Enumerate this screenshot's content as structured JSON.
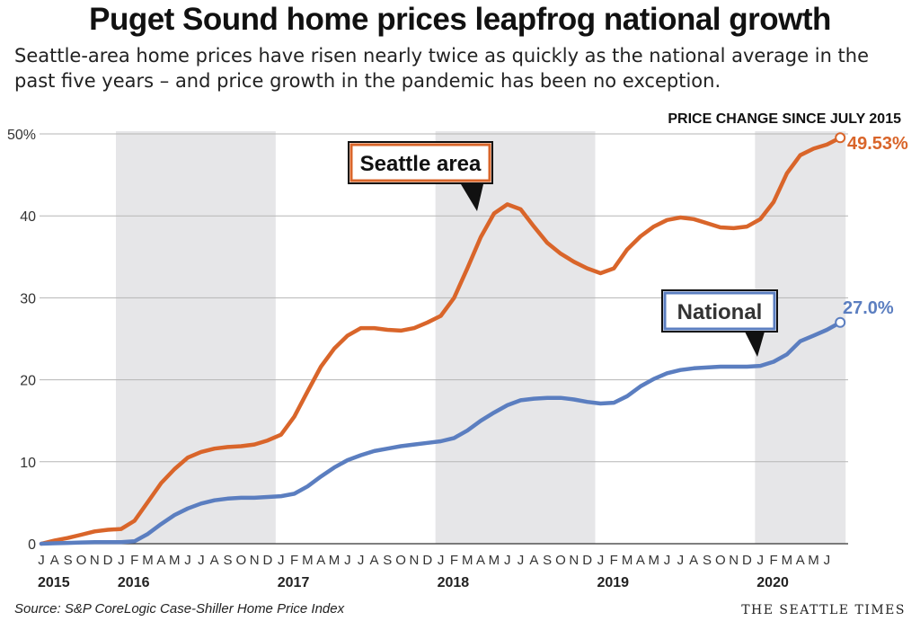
{
  "title": "Puget Sound home prices leapfrog national growth",
  "subtitle": "Seattle-area home prices have risen nearly twice as quickly as the national average in the past five years – and price growth in the pandemic has been no exception.",
  "source": "Source: S&P CoreLogic Case-Shiller Home Price Index",
  "brand": "THE SEATTLE TIMES",
  "chart_data": {
    "type": "line",
    "annotation": "PRICE CHANGE SINCE JULY 2015",
    "ylim": [
      0,
      50
    ],
    "yticks": [
      "0",
      "10",
      "20",
      "30",
      "40",
      "50%"
    ],
    "grid": true,
    "month_labels": [
      "J",
      "A",
      "S",
      "O",
      "N",
      "D",
      "J",
      "F",
      "M",
      "A",
      "M",
      "J",
      "J",
      "A",
      "S",
      "O",
      "N",
      "D",
      "J",
      "F",
      "M",
      "A",
      "M",
      "J",
      "J",
      "A",
      "S",
      "O",
      "N",
      "D",
      "J",
      "F",
      "M",
      "A",
      "M",
      "J",
      "J",
      "A",
      "S",
      "O",
      "N",
      "D",
      "J",
      "F",
      "M",
      "A",
      "M",
      "J",
      "J",
      "A",
      "S",
      "O",
      "N",
      "D",
      "J",
      "F",
      "M",
      "A",
      "M",
      "J"
    ],
    "year_labels": [
      "2015",
      "2016",
      "2017",
      "2018",
      "2019",
      "2020"
    ],
    "colors": {
      "seattle": "#d9652a",
      "national": "#5b7ec0",
      "shade": "#e6e6e8",
      "grid": "#b5b5b5"
    },
    "series": [
      {
        "name": "Seattle area",
        "end_label": "49.53%",
        "values": [
          0,
          0.4,
          0.7,
          1.1,
          1.5,
          1.7,
          1.8,
          2.8,
          5.1,
          7.4,
          9.1,
          10.5,
          11.2,
          11.6,
          11.8,
          11.9,
          12.1,
          12.6,
          13.3,
          15.5,
          18.6,
          21.6,
          23.8,
          25.4,
          26.3,
          26.3,
          26.1,
          26.0,
          26.3,
          27.0,
          27.8,
          30.0,
          33.6,
          37.4,
          40.3,
          41.4,
          40.8,
          38.7,
          36.7,
          35.4,
          34.4,
          33.6,
          33.0,
          33.6,
          35.9,
          37.5,
          38.7,
          39.5,
          39.8,
          39.6,
          39.1,
          38.6,
          38.5,
          38.7,
          39.6,
          41.7,
          45.2,
          47.4,
          48.2,
          48.7,
          49.53
        ]
      },
      {
        "name": "National",
        "end_label": "27.0%",
        "values": [
          0,
          0.05,
          0.1,
          0.15,
          0.2,
          0.2,
          0.2,
          0.3,
          1.2,
          2.4,
          3.5,
          4.3,
          4.9,
          5.3,
          5.5,
          5.6,
          5.6,
          5.7,
          5.8,
          6.1,
          7.0,
          8.2,
          9.3,
          10.2,
          10.8,
          11.3,
          11.6,
          11.9,
          12.1,
          12.3,
          12.5,
          12.9,
          13.8,
          15.0,
          16.0,
          16.9,
          17.5,
          17.7,
          17.8,
          17.8,
          17.6,
          17.3,
          17.1,
          17.2,
          18.0,
          19.2,
          20.1,
          20.8,
          21.2,
          21.4,
          21.5,
          21.6,
          21.6,
          21.6,
          21.7,
          22.2,
          23.1,
          24.7,
          25.4,
          26.1,
          27.0
        ]
      }
    ]
  }
}
